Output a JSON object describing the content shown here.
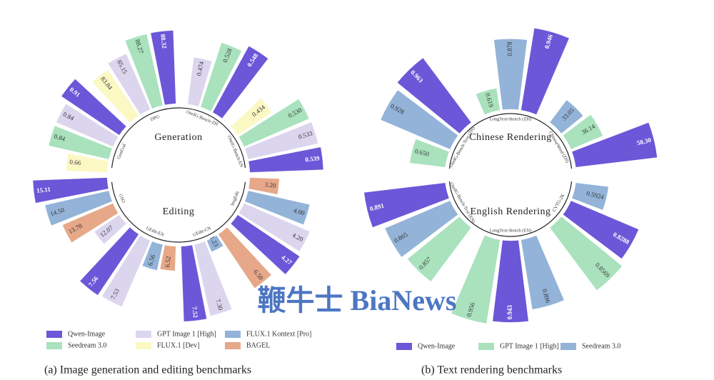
{
  "chart_data": [
    {
      "type": "radial-bar",
      "caption": "(a) Image generation and editing benchmarks",
      "series": [
        {
          "name": "Qwen-Image",
          "color": "#6b57d8"
        },
        {
          "name": "GPT Image 1 [High]",
          "color": "#dcd5ee"
        },
        {
          "name": "FLUX.1 Kontext [Pro]",
          "color": "#93b3d8"
        },
        {
          "name": "Seedream 3.0",
          "color": "#a9e2bd"
        },
        {
          "name": "FLUX.1 [Dev]",
          "color": "#fbf8c4"
        },
        {
          "name": "BAGEL",
          "color": "#e6a889"
        }
      ],
      "sections": [
        {
          "label": "Generation",
          "groups": [
            {
              "name": "GenEval",
              "order": [
                4,
                3,
                1,
                0
              ],
              "values": [
                0.66,
                0.84,
                0.84,
                0.91
              ],
              "value_labels": [
                "0.66",
                "0.84",
                "0.84",
                "0.91"
              ],
              "rlim": [
                0.3,
                1.0
              ]
            },
            {
              "name": "DPG",
              "order": [
                4,
                1,
                3,
                0
              ],
              "values": [
                83.84,
                85.15,
                88.27,
                88.32
              ],
              "value_labels": [
                "83.84",
                "85.15",
                "88.27",
                "88.32"
              ],
              "rlim": [
                70,
                90
              ]
            },
            {
              "name": "OneIG-Bench-ZH",
              "order": [
                1,
                3,
                0
              ],
              "values": [
                0.474,
                0.528,
                0.548
              ],
              "value_labels": [
                "0.474",
                "0.528",
                "0.548"
              ],
              "rlim": [
                0.35,
                0.56
              ]
            },
            {
              "name": "OneIG-Bench-EN",
              "order": [
                4,
                3,
                1,
                0
              ],
              "values": [
                0.434,
                0.53,
                0.533,
                0.539
              ],
              "value_labels": [
                "0.434",
                "0.530",
                "0.533",
                "0.539"
              ],
              "rlim": [
                0.3,
                0.56
              ]
            }
          ]
        },
        {
          "label": "Editing",
          "groups": [
            {
              "name": "ImgEdit",
              "order": [
                5,
                2,
                1,
                0
              ],
              "values": [
                3.2,
                4.0,
                4.2,
                4.27
              ],
              "value_labels": [
                "3.20",
                "4.00",
                "4.20",
                "4.27"
              ],
              "rlim": [
                2.5,
                4.4
              ]
            },
            {
              "name": "GEdit-CN",
              "order": [
                5,
                2,
                1,
                0
              ],
              "values": [
                6.5,
                1.23,
                7.3,
                7.52
              ],
              "value_labels": [
                "6.50",
                "1.23",
                "7.30",
                "7.52"
              ],
              "rlim": [
                0,
                8
              ]
            },
            {
              "name": "GEdit-EN",
              "order": [
                5,
                2,
                1,
                0
              ],
              "values": [
                6.52,
                6.56,
                7.53,
                7.56
              ],
              "value_labels": [
                "6.52",
                "6.56",
                "7.53",
                "7.56"
              ],
              "rlim": [
                6,
                7.7
              ]
            },
            {
              "name": "GSO",
              "order": [
                1,
                5,
                2,
                0
              ],
              "values": [
                12.07,
                13.78,
                14.5,
                15.11
              ],
              "value_labels": [
                "12.07",
                "13.78",
                "14.50",
                "15.11"
              ],
              "rlim": [
                10,
                15.5
              ]
            }
          ]
        }
      ]
    },
    {
      "type": "radial-bar",
      "caption": "(b) Text rendering benchmarks",
      "series": [
        {
          "name": "Qwen-Image",
          "color": "#6b57d8"
        },
        {
          "name": "GPT Image 1 [High]",
          "color": "#a9e2bd"
        },
        {
          "name": "Seedream 3.0",
          "color": "#93b3d8"
        }
      ],
      "sections": [
        {
          "label": "Chinese Rendering",
          "groups": [
            {
              "name": "OneIG-Bench-Text (ZH)",
              "order": [
                1,
                2,
                0
              ],
              "values": [
                0.65,
                0.928,
                0.963
              ],
              "value_labels": [
                "0.650",
                "0.928",
                "0.963"
              ],
              "rlim": [
                0.4,
                1.0
              ]
            },
            {
              "name": "LongText-Bench (ZH)",
              "order": [
                1,
                2,
                0
              ],
              "values": [
                0.619,
                0.878,
                0.946
              ],
              "value_labels": [
                "0.619",
                "0.878",
                "0.946"
              ],
              "rlim": [
                0.5,
                0.96
              ]
            },
            {
              "name": "ChineseWord (ZH)",
              "order": [
                2,
                1,
                0
              ],
              "values": [
                33.05,
                36.14,
                58.3
              ],
              "value_labels": [
                "33.05",
                "36.14",
                "58.30"
              ],
              "rlim": [
                20,
                60
              ]
            }
          ]
        },
        {
          "label": "English Rendering",
          "groups": [
            {
              "name": "CVTG-2K",
              "order": [
                2,
                0,
                1
              ],
              "values": [
                0.5924,
                0.8288,
                0.8569
              ],
              "value_labels": [
                "0.5924",
                "0.8288",
                "0.8569"
              ],
              "rlim": [
                0.4,
                0.9
              ]
            },
            {
              "name": "LongText-Bench (EN)",
              "order": [
                2,
                0,
                1
              ],
              "values": [
                0.896,
                0.943,
                0.956
              ],
              "value_labels": [
                "0.896",
                "0.943",
                "0.956"
              ],
              "rlim": [
                0.6,
                0.96
              ]
            },
            {
              "name": "OneIG-Bench-Text (EN)",
              "order": [
                1,
                2,
                0
              ],
              "values": [
                0.857,
                0.865,
                0.891
              ],
              "value_labels": [
                "0.857",
                "0.865",
                "0.891"
              ],
              "rlim": [
                0.7,
                0.9
              ]
            }
          ]
        }
      ]
    }
  ],
  "watermark": "鞭牛士 BiaNews"
}
